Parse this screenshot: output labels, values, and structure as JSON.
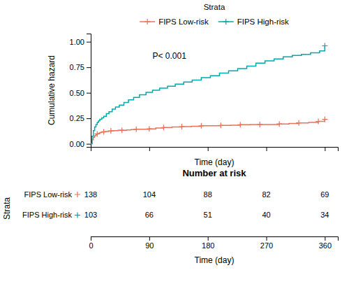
{
  "chart_data": [
    {
      "type": "step",
      "y_label": "Cumulative hazard",
      "x_label": "Time (day)",
      "legend_title": "Strata",
      "legend": "top",
      "annotation": "P< 0.001",
      "grid": false,
      "tick_labels": "y",
      "xlim": [
        0,
        380
      ],
      "ylim": [
        -0.03,
        1.08
      ],
      "xticks": [
        0,
        90,
        180,
        270,
        360
      ],
      "yticks": [
        {
          "value": 0.0,
          "label": "0.00"
        },
        0.25,
        {
          "value": 0.5,
          "label": "0.50"
        },
        0.75,
        {
          "value": 1.0,
          "label": "1.00"
        }
      ],
      "series": [
        {
          "name": "FIPS Low-risk",
          "color": "#E8735A",
          "marker": "plus",
          "x": [
            0,
            2,
            4,
            6,
            8,
            10,
            12,
            14,
            17,
            20,
            23,
            27,
            31,
            36,
            42,
            48,
            55,
            62,
            70,
            78,
            90,
            100,
            112,
            125,
            140,
            155,
            170,
            185,
            200,
            215,
            230,
            245,
            260,
            275,
            290,
            305,
            320,
            335,
            350,
            360
          ],
          "values": [
            0.0,
            0.04,
            0.065,
            0.08,
            0.09,
            0.097,
            0.104,
            0.11,
            0.115,
            0.118,
            0.121,
            0.124,
            0.127,
            0.13,
            0.133,
            0.133,
            0.137,
            0.14,
            0.143,
            0.143,
            0.147,
            0.155,
            0.16,
            0.165,
            0.168,
            0.172,
            0.177,
            0.177,
            0.18,
            0.183,
            0.187,
            0.19,
            0.19,
            0.19,
            0.195,
            0.2,
            0.205,
            0.21,
            0.22,
            0.24
          ],
          "censor_x": [
            10,
            20,
            31,
            48,
            70,
            90,
            112,
            140,
            170,
            200,
            230,
            260,
            290,
            320,
            350,
            360
          ],
          "censor_values": [
            0.097,
            0.118,
            0.127,
            0.133,
            0.143,
            0.147,
            0.16,
            0.168,
            0.177,
            0.18,
            0.187,
            0.19,
            0.195,
            0.205,
            0.22,
            0.24
          ]
        },
        {
          "name": "FIPS High-risk",
          "color": "#00AAAA",
          "marker": "plus",
          "x": [
            0,
            2,
            4,
            6,
            8,
            10,
            12,
            14,
            17,
            20,
            24,
            28,
            33,
            38,
            44,
            51,
            58,
            66,
            75,
            85,
            95,
            106,
            118,
            130,
            143,
            156,
            170,
            184,
            198,
            212,
            226,
            240,
            254,
            268,
            282,
            296,
            310,
            324,
            338,
            352,
            360
          ],
          "values": [
            0.0,
            0.075,
            0.13,
            0.165,
            0.19,
            0.21,
            0.225,
            0.24,
            0.255,
            0.27,
            0.295,
            0.315,
            0.34,
            0.36,
            0.38,
            0.405,
            0.43,
            0.455,
            0.48,
            0.505,
            0.525,
            0.545,
            0.565,
            0.585,
            0.605,
            0.625,
            0.648,
            0.668,
            0.693,
            0.715,
            0.738,
            0.762,
            0.79,
            0.812,
            0.832,
            0.852,
            0.866,
            0.876,
            0.892,
            0.91,
            0.96
          ],
          "censor_x": [
            360
          ],
          "censor_values": [
            0.96
          ]
        }
      ]
    },
    {
      "type": "table",
      "title": "Number at risk",
      "x_label": "Time (day)",
      "y_label": "Strata",
      "xlim": [
        0,
        380
      ],
      "xticks": [
        0,
        90,
        180,
        270,
        360
      ],
      "x": [
        0,
        90,
        180,
        270,
        360
      ],
      "series": [
        {
          "name": "FIPS Low-risk",
          "color": "#E8735A",
          "marker": "plus",
          "values": [
            138,
            104,
            88,
            82,
            69
          ]
        },
        {
          "name": "FIPS High-risk",
          "color": "#00AAAA",
          "marker": "plus",
          "values": [
            103,
            66,
            51,
            40,
            34
          ]
        }
      ]
    }
  ]
}
